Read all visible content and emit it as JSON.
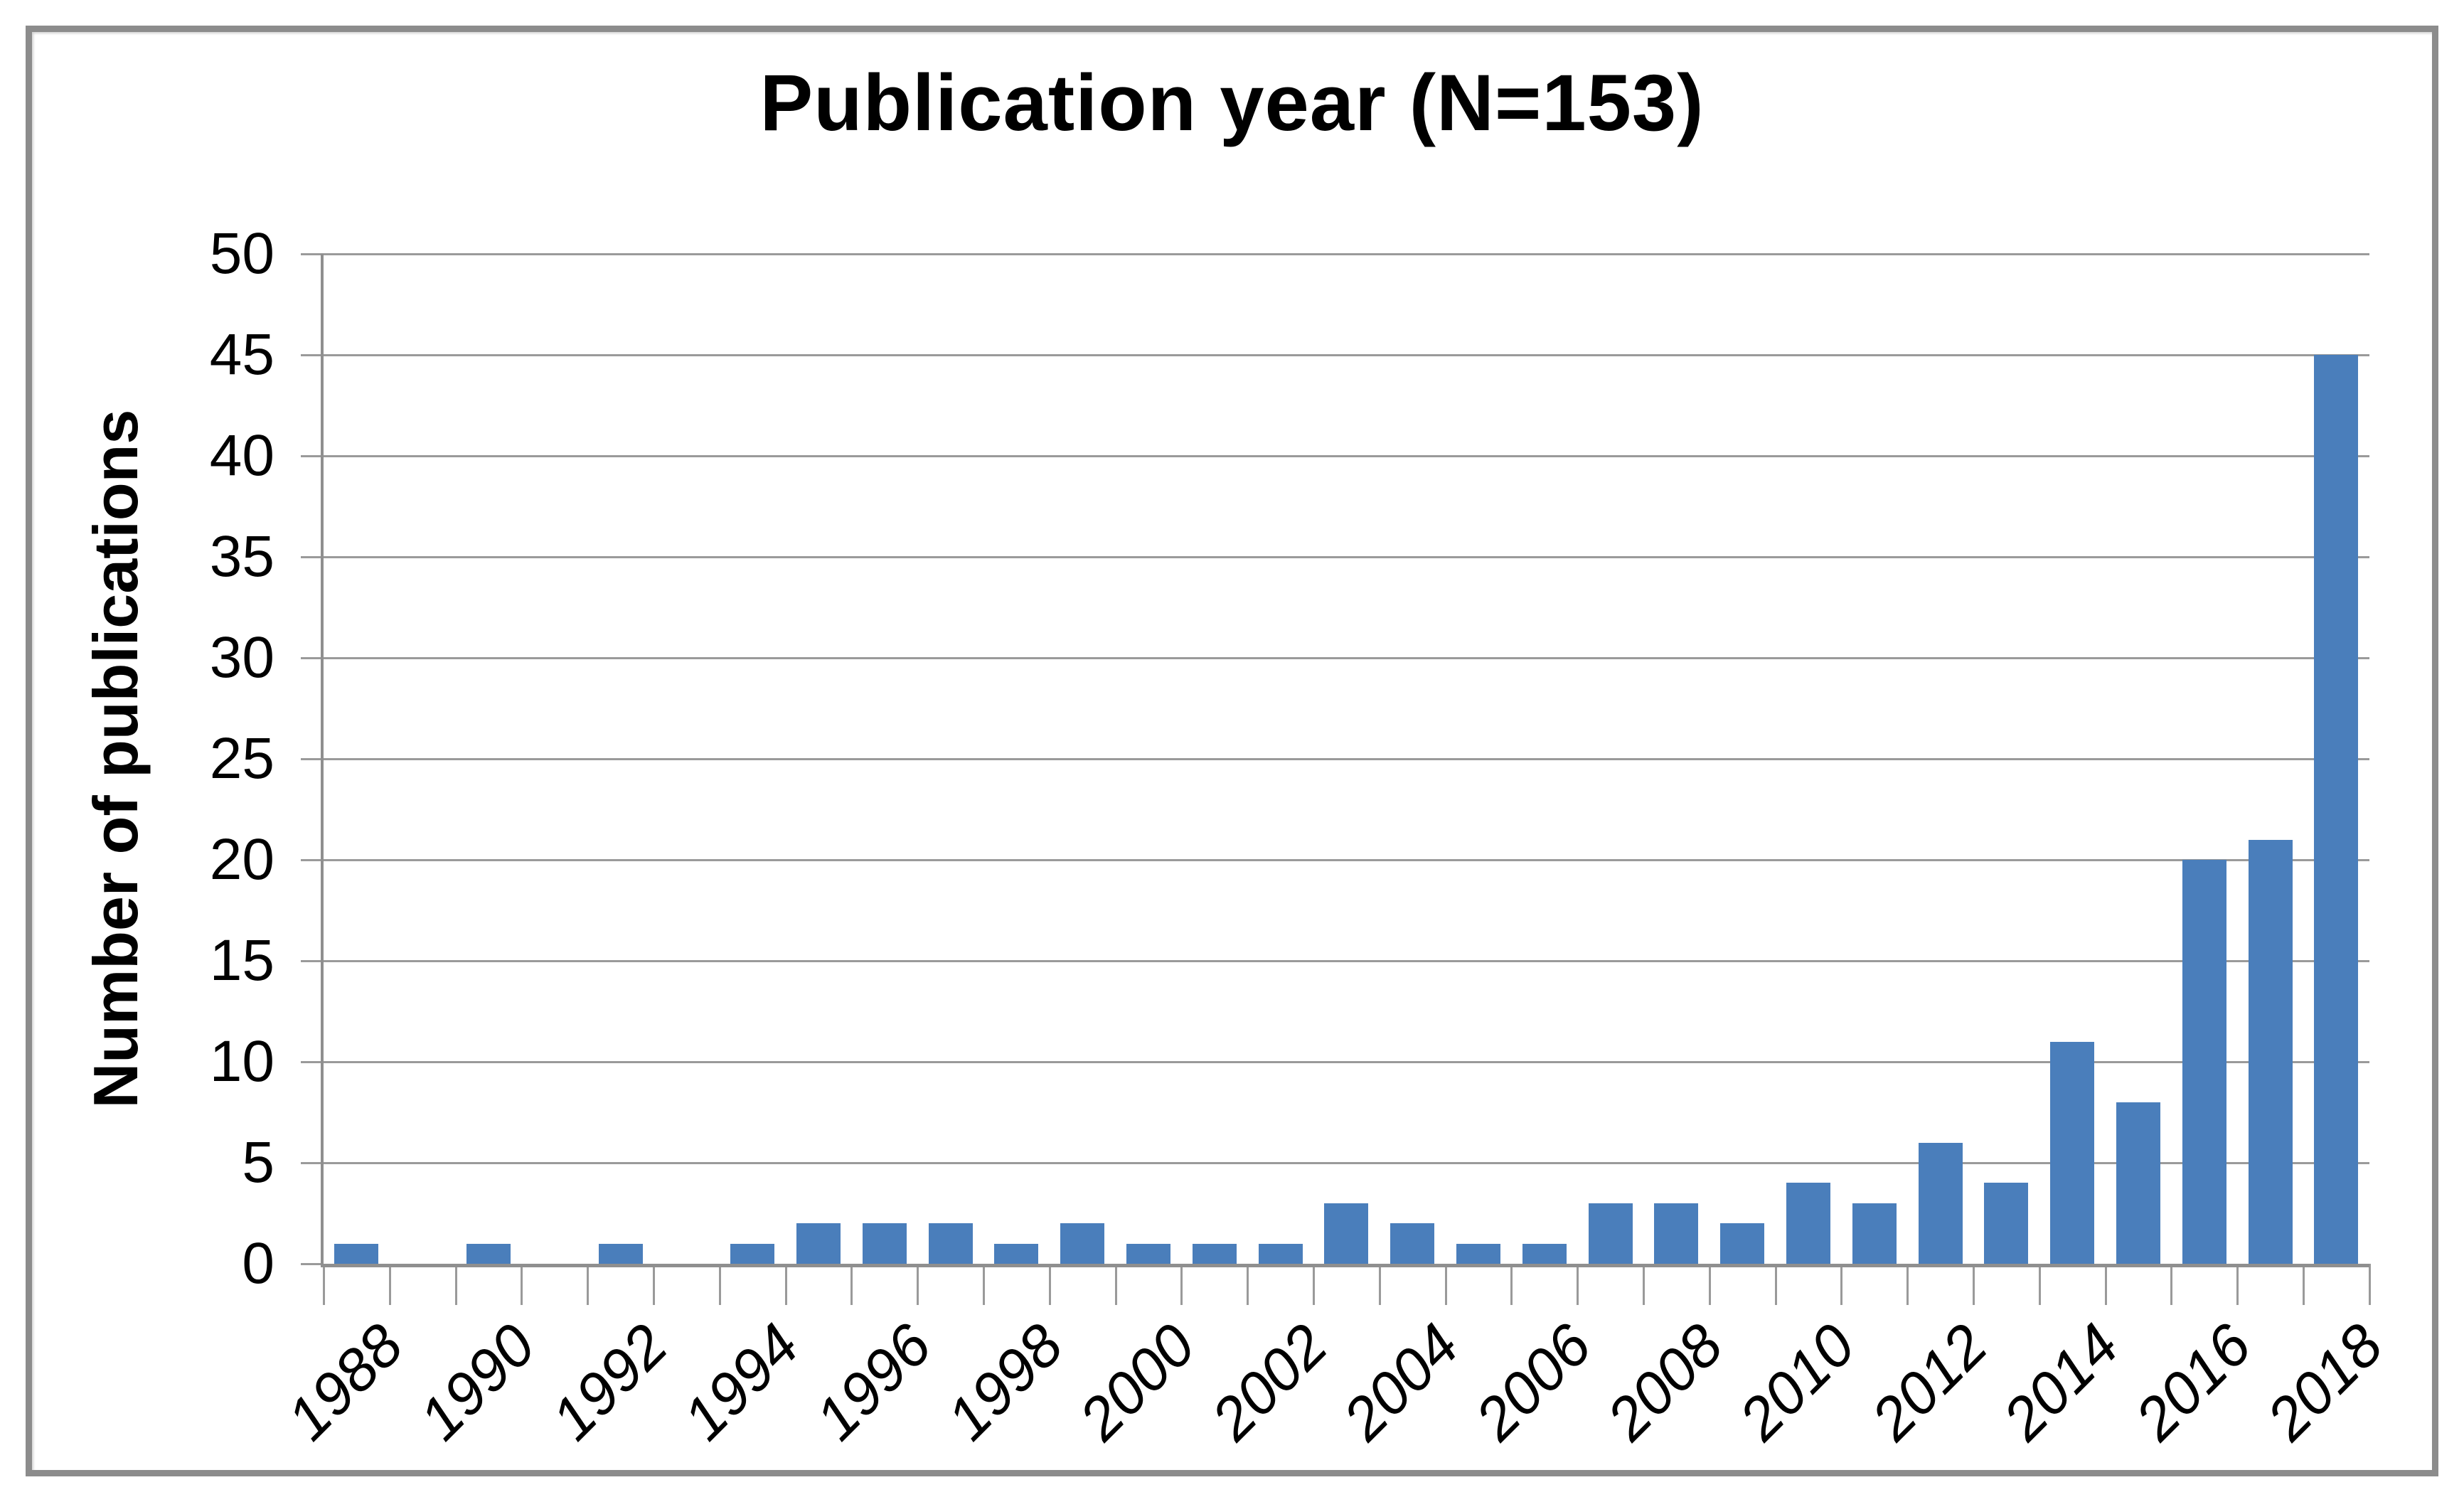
{
  "chart_data": {
    "type": "bar",
    "title": "Publication year (N=153)",
    "xlabel": "",
    "ylabel": "Number of publications",
    "categories": [
      "1988",
      "1989",
      "1990",
      "1991",
      "1992",
      "1993",
      "1994",
      "1995",
      "1996",
      "1997",
      "1998",
      "1999",
      "2000",
      "2001",
      "2002",
      "2003",
      "2004",
      "2005",
      "2006",
      "2007",
      "2008",
      "2009",
      "2010",
      "2011",
      "2012",
      "2013",
      "2014",
      "2015",
      "2016",
      "2017",
      "2018"
    ],
    "values": [
      1,
      0,
      1,
      0,
      1,
      0,
      1,
      2,
      2,
      2,
      1,
      2,
      1,
      1,
      1,
      3,
      2,
      1,
      1,
      3,
      3,
      2,
      4,
      3,
      6,
      4,
      11,
      8,
      20,
      21,
      45
    ],
    "total_n": 153,
    "ylim": [
      0,
      50
    ],
    "ytick_step": 5,
    "xtick_label_every": 2,
    "grid": "horizontal",
    "legend": "none",
    "colors": {
      "bar": "#4a7ebb",
      "gridline": "#9a9a9a",
      "axis": "#8f8f8f",
      "frame_border": "#8c8c8c",
      "text": "#000000"
    }
  }
}
